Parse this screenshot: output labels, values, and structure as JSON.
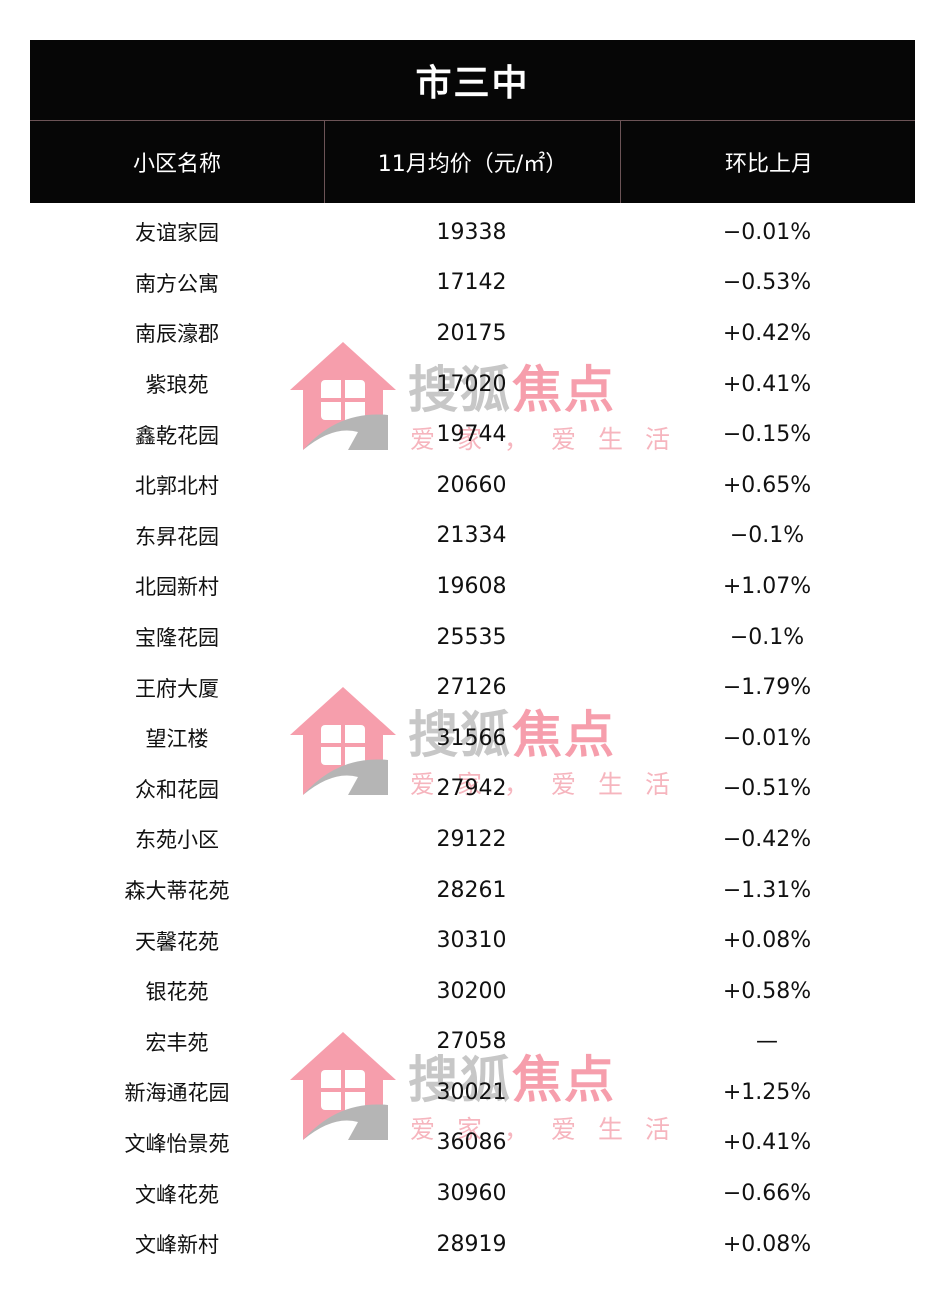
{
  "table": {
    "title": "市三中",
    "headers": [
      "小区名称",
      "11月均价（元/㎡）",
      "环比上月"
    ],
    "rows": [
      {
        "name": "友谊家园",
        "price": "19338",
        "change": "−0.01%"
      },
      {
        "name": "南方公寓",
        "price": "17142",
        "change": "−0.53%"
      },
      {
        "name": "南辰濠郡",
        "price": "20175",
        "change": "+0.42%"
      },
      {
        "name": "紫琅苑",
        "price": "17020",
        "change": "+0.41%"
      },
      {
        "name": "鑫乾花园",
        "price": "19744",
        "change": "−0.15%"
      },
      {
        "name": "北郭北村",
        "price": "20660",
        "change": "+0.65%"
      },
      {
        "name": "东昇花园",
        "price": "21334",
        "change": "−0.1%"
      },
      {
        "name": "北园新村",
        "price": "19608",
        "change": "+1.07%"
      },
      {
        "name": "宝隆花园",
        "price": "25535",
        "change": "−0.1%"
      },
      {
        "name": "王府大厦",
        "price": "27126",
        "change": "−1.79%"
      },
      {
        "name": "望江楼",
        "price": "31566",
        "change": "−0.01%"
      },
      {
        "name": "众和花园",
        "price": "27942",
        "change": "−0.51%"
      },
      {
        "name": "东苑小区",
        "price": "29122",
        "change": "−0.42%"
      },
      {
        "name": "森大蒂花苑",
        "price": "28261",
        "change": "−1.31%"
      },
      {
        "name": "天馨花苑",
        "price": "30310",
        "change": "+0.08%"
      },
      {
        "name": "银花苑",
        "price": "30200",
        "change": "+0.58%"
      },
      {
        "name": "宏丰苑",
        "price": "27058",
        "change": "—"
      },
      {
        "name": "新海通花园",
        "price": "30021",
        "change": "+1.25%"
      },
      {
        "name": "文峰怡景苑",
        "price": "36086",
        "change": "+0.41%"
      },
      {
        "name": "文峰花苑",
        "price": "30960",
        "change": "−0.66%"
      },
      {
        "name": "文峰新村",
        "price": "28919",
        "change": "+0.08%"
      }
    ]
  },
  "watermark": {
    "brand_gray": "搜狐",
    "brand_red": "焦点",
    "slogan": "爱家，爱生活",
    "logo_icon": "sohu-focus-house-fox-logo-icon"
  },
  "colors": {
    "header_bg": "#060606",
    "header_text": "#ffffff",
    "divider": "#6b5356",
    "watermark_red": "#f0506a",
    "watermark_gray": "#9a9a9a"
  }
}
